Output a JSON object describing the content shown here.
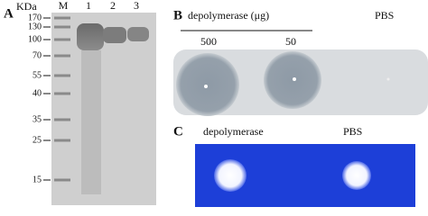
{
  "panel_a": {
    "label": "A",
    "unit": "KDa",
    "lanes": [
      "M",
      "1",
      "2",
      "3"
    ],
    "markers": [
      170,
      130,
      100,
      70,
      55,
      40,
      35,
      25,
      15
    ]
  },
  "panel_b": {
    "label": "B",
    "group_label": "depolymerase (μg)",
    "control_label": "PBS",
    "doses": [
      500,
      50
    ]
  },
  "panel_c": {
    "label": "C",
    "sample_label": "depolymerase",
    "control_label": "PBS"
  }
}
